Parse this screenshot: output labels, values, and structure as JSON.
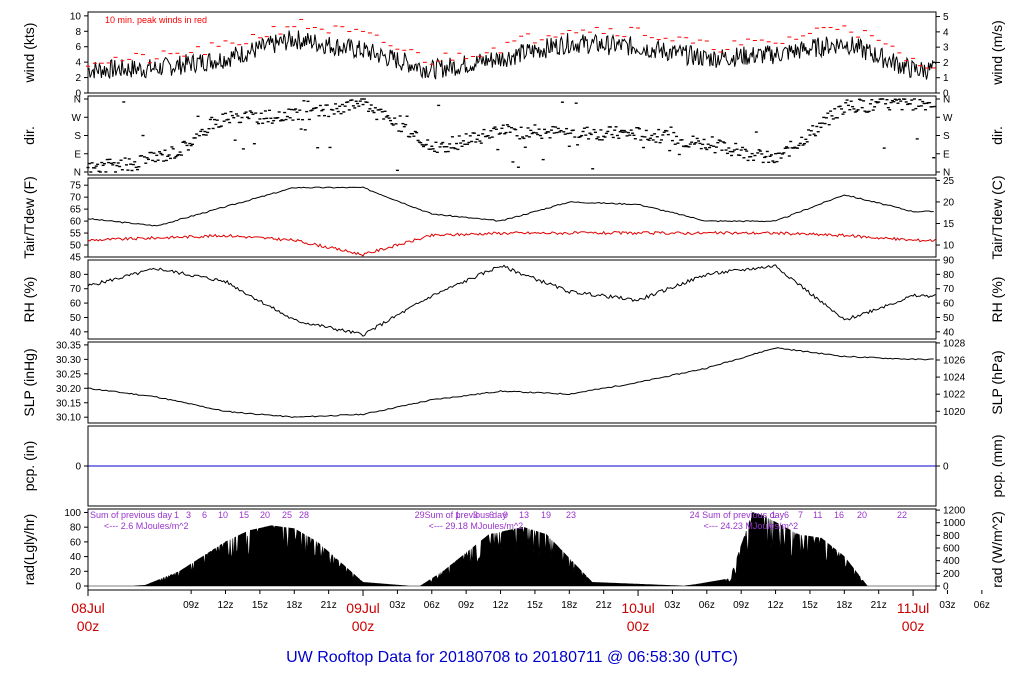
{
  "colors": {
    "axis": "#000000",
    "series": "#000000",
    "peak": "#ff0000",
    "dewpoint": "#e00000",
    "precip": "#0000cc",
    "date_label": "#cc0000",
    "radiation_note": "#9933cc",
    "footer": "#0000cc"
  },
  "footer": {
    "prefix": "UW Rooftop Data for",
    "start": "20180708",
    "to": "to",
    "end": "20180711",
    "at": "@ 06:58:30",
    "tz": "(UTC)"
  },
  "chart_data": [
    {
      "id": "wind",
      "type": "line",
      "ylabel": "wind (kts)",
      "ylabel_right": "wind (m/s)",
      "ylim": [
        0,
        10.5
      ],
      "yticks": [
        0,
        2,
        4,
        6,
        8,
        10
      ],
      "yticks_right": [
        "0",
        "1",
        "2",
        "3",
        "4",
        "5"
      ],
      "annotation": "10 min. peak winds in red",
      "x_hours": [
        0,
        6,
        12,
        18,
        24,
        30,
        36,
        42,
        48,
        54,
        60,
        66,
        72
      ],
      "series": [
        {
          "values": [
            3.0,
            3.2,
            4.5,
            7.0,
            5.5,
            3.0,
            4.5,
            6.5,
            6.0,
            4.5,
            5.0,
            6.5,
            3.0
          ]
        },
        {
          "values": [
            4.2,
            4.5,
            6.0,
            9.0,
            7.5,
            4.2,
            6.0,
            8.5,
            8.0,
            6.0,
            6.5,
            9.0,
            4.0
          ]
        }
      ]
    },
    {
      "id": "dir",
      "type": "scatter",
      "ylabel": "dir.",
      "ylabel_right": "dir.",
      "ylim": [
        0,
        360
      ],
      "yticks_labels": [
        "N",
        "E",
        "S",
        "W",
        "N"
      ],
      "x_hours": [
        0,
        4,
        8,
        12,
        16,
        20,
        24,
        30,
        36,
        42,
        48,
        54,
        60,
        66,
        72
      ],
      "values": [
        20,
        40,
        110,
        270,
        270,
        290,
        350,
        110,
        200,
        195,
        190,
        140,
        60,
        320,
        340
      ]
    },
    {
      "id": "temp",
      "type": "line",
      "ylabel": "Tair/Tdew (F)",
      "ylabel_right": "Tair/Tdew (C)",
      "ylim": [
        45,
        78
      ],
      "yticks": [
        45,
        50,
        55,
        60,
        65,
        70,
        75
      ],
      "yticks_right": [
        "10",
        "15",
        "20",
        "25"
      ],
      "x_hours": [
        0,
        6,
        12,
        18,
        24,
        30,
        36,
        42,
        48,
        54,
        60,
        66,
        72
      ],
      "series": [
        {
          "values": [
            61,
            58,
            66,
            74,
            74,
            63,
            60,
            68,
            67,
            60,
            60,
            71,
            64
          ]
        },
        {
          "values": [
            52,
            53,
            54,
            52,
            46,
            54,
            55,
            55,
            55,
            55,
            55,
            54,
            52
          ]
        }
      ]
    },
    {
      "id": "rh",
      "type": "line",
      "ylabel": "RH (%)",
      "ylabel_right": "RH (%)",
      "ylim": [
        35,
        90
      ],
      "yticks": [
        40,
        50,
        60,
        70,
        80
      ],
      "yticks_right": [
        "40",
        "50",
        "60",
        "70",
        "80",
        "90"
      ],
      "x_hours": [
        0,
        6,
        12,
        18,
        24,
        30,
        36,
        42,
        48,
        54,
        60,
        66,
        72
      ],
      "values": [
        72,
        84,
        75,
        48,
        38,
        65,
        86,
        68,
        62,
        80,
        86,
        48,
        65
      ]
    },
    {
      "id": "slp",
      "type": "line",
      "ylabel": "SLP (inHg)",
      "ylabel_right": "SLP (hPa)",
      "ylim": [
        30.08,
        30.36
      ],
      "yticks": [
        30.1,
        30.15,
        30.2,
        30.25,
        30.3
      ],
      "ytick_labels": [
        "30.10",
        "30.15",
        "30.20",
        "30.25",
        "30.30",
        "30.35"
      ],
      "yticks_right": [
        "1020",
        "1022",
        "1024",
        "1026",
        "1028"
      ],
      "x_hours": [
        0,
        6,
        12,
        18,
        24,
        30,
        36,
        42,
        48,
        54,
        60,
        66,
        72
      ],
      "values": [
        30.2,
        30.17,
        30.12,
        30.1,
        30.11,
        30.16,
        30.19,
        30.18,
        30.22,
        30.27,
        30.34,
        30.31,
        30.3
      ]
    },
    {
      "id": "pcp",
      "type": "line",
      "ylabel": "pcp. (in)",
      "ylabel_right": "pcp. (mm)",
      "yticks": [
        0
      ],
      "yticks_right": [
        "0"
      ],
      "x_hours": [
        0,
        72
      ],
      "values": [
        0,
        0
      ]
    },
    {
      "id": "rad",
      "type": "area",
      "ylabel": "rad(Lgly/hr)",
      "ylabel_right": "rad (W/m^2)",
      "ylim": [
        0,
        102
      ],
      "yticks": [
        0,
        20,
        40,
        60,
        80,
        100
      ],
      "yticks_right": [
        "0",
        "200",
        "400",
        "600",
        "800",
        "1000",
        "1200"
      ],
      "x_hours": [
        0,
        4,
        5,
        8,
        12,
        14,
        16,
        18,
        20,
        24,
        28,
        29,
        31,
        35,
        38,
        40,
        44,
        52,
        53,
        56,
        58,
        59,
        62,
        64,
        66,
        68,
        72
      ],
      "values": [
        0,
        0,
        1,
        20,
        60,
        75,
        82,
        78,
        60,
        5,
        0,
        0,
        20,
        70,
        80,
        70,
        5,
        0,
        2,
        10,
        100,
        95,
        70,
        65,
        40,
        0,
        0
      ],
      "notes": [
        {
          "heading": "Sum of previous day",
          "value": "<--- 2.6 MJoules/m^2"
        },
        {
          "heading": "29Sum of previous day",
          "value": "<--- 29.18 MJoules/m^2"
        },
        {
          "heading": "24 Sum of previous day",
          "value": "<--- 24.23 MJoules/m^2"
        }
      ],
      "hour_marks": [
        [
          "1",
          "3",
          "6",
          "10",
          "15",
          "20",
          "25",
          "28"
        ],
        [
          "1",
          "3",
          "6",
          "9",
          "13",
          "19",
          "23"
        ],
        [
          "1",
          "6",
          "7",
          "11",
          "16",
          "20",
          "22"
        ]
      ]
    }
  ],
  "x_axis": {
    "tick_labels": [
      "09z",
      "12z",
      "15z",
      "18z",
      "21z",
      "03z",
      "06z",
      "09z",
      "12z",
      "15z",
      "18z",
      "21z",
      "03z",
      "06z",
      "09z",
      "12z",
      "15z",
      "18z",
      "21z",
      "03z",
      "06z"
    ],
    "date_labels": [
      {
        "date": "08Jul",
        "time": "00z"
      },
      {
        "date": "09Jul",
        "time": "00z"
      },
      {
        "date": "10Jul",
        "time": "00z"
      },
      {
        "date": "11Jul",
        "time": "00z"
      }
    ]
  }
}
